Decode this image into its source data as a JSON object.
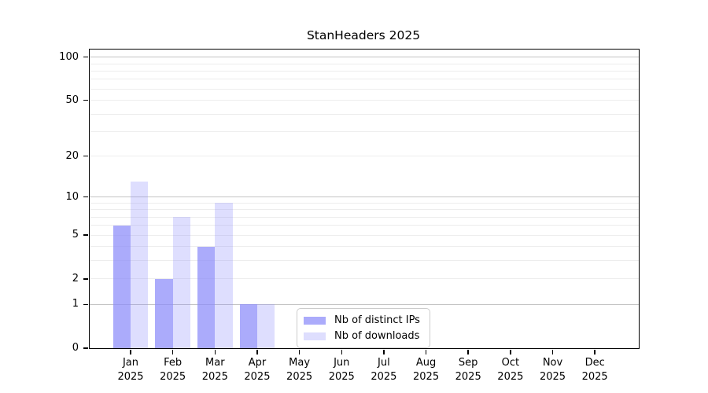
{
  "chart_data": {
    "type": "bar",
    "title": "StanHeaders 2025",
    "xlabel": "",
    "ylabel": "",
    "categories": [
      "Jan",
      "Feb",
      "Mar",
      "Apr",
      "May",
      "Jun",
      "Jul",
      "Aug",
      "Sep",
      "Oct",
      "Nov",
      "Dec"
    ],
    "year_label": "2025",
    "series": [
      {
        "name": "Nb of distinct IPs",
        "fill": "rgba(138,138,250,0.72)",
        "values": [
          6,
          2,
          4,
          1,
          0,
          0,
          0,
          0,
          0,
          0,
          0,
          0
        ]
      },
      {
        "name": "Nb of downloads",
        "fill": "rgba(138,138,250,0.28)",
        "values": [
          13,
          7,
          9,
          1,
          0,
          0,
          0,
          0,
          0,
          0,
          0,
          0
        ]
      }
    ],
    "y_scale": "log1p",
    "y_ticks": [
      0,
      1,
      2,
      5,
      10,
      20,
      50,
      100
    ],
    "y_minor_gridlines": [
      2,
      3,
      4,
      5,
      6,
      7,
      8,
      9,
      20,
      30,
      40,
      50,
      60,
      70,
      80,
      90
    ],
    "y_major_gridlines": [
      1,
      10,
      100
    ],
    "ylim": [
      0,
      113
    ],
    "grid": "horizontal",
    "legend_position": "lower-center",
    "colors": {
      "bar_base": "#8a8afa",
      "major_grid": "#c4c4c4",
      "minor_grid": "#ededed",
      "axis": "#000000",
      "legend_border": "#cccccc"
    }
  }
}
